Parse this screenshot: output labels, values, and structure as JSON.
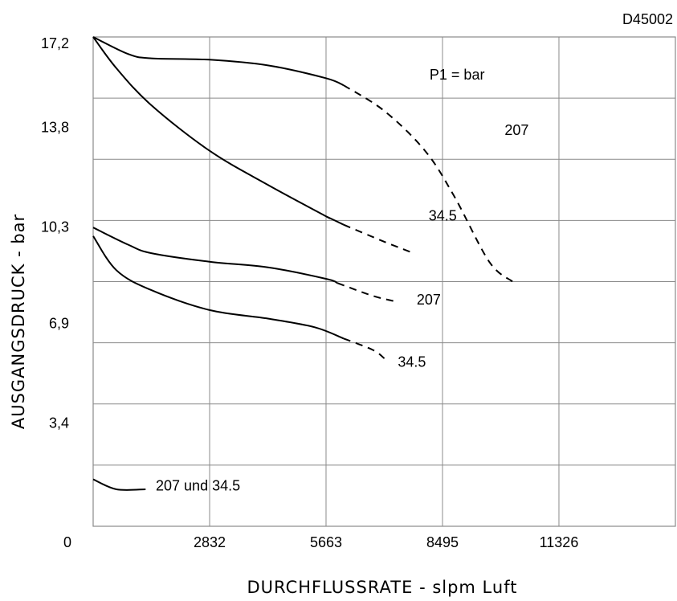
{
  "chart_data": {
    "type": "line",
    "code": "D45002",
    "xlabel": "DURCHFLUSSRATE - slpm Luft",
    "ylabel": "AUSGANGSDRUCK - bar",
    "xlim": [
      0,
      14158
    ],
    "ylim": [
      0,
      17.2
    ],
    "x_ticks": [
      {
        "value": 0,
        "label": "0"
      },
      {
        "value": 2832,
        "label": "2832"
      },
      {
        "value": 5663,
        "label": "5663"
      },
      {
        "value": 8495,
        "label": "8495"
      },
      {
        "value": 11326,
        "label": "11326"
      }
    ],
    "y_ticks": [
      {
        "value": 3.4,
        "label": "3,4"
      },
      {
        "value": 6.9,
        "label": "6,9"
      },
      {
        "value": 10.3,
        "label": "10,3"
      },
      {
        "value": 13.8,
        "label": "13,8"
      },
      {
        "value": 17.2,
        "label": "17,2"
      }
    ],
    "x_grid": [
      0,
      2832,
      5663,
      8495,
      11326
    ],
    "y_grid": [
      2.15,
      4.3,
      6.45,
      8.6,
      10.75,
      12.9,
      15.05
    ],
    "legend_title": "P1 = bar",
    "series": [
      {
        "label": "207",
        "solid": [
          [
            0,
            17.2
          ],
          [
            850,
            16.6
          ],
          [
            1415,
            16.45
          ],
          [
            2830,
            16.4
          ],
          [
            4250,
            16.2
          ],
          [
            5660,
            15.75
          ],
          [
            6090,
            15.5
          ]
        ],
        "dashed": [
          [
            6090,
            15.5
          ],
          [
            7080,
            14.6
          ],
          [
            8070,
            13.2
          ],
          [
            8780,
            11.6
          ],
          [
            9630,
            9.3
          ],
          [
            10200,
            8.6
          ]
        ]
      },
      {
        "label": "34.5",
        "solid": [
          [
            0,
            17.2
          ],
          [
            565,
            16.1
          ],
          [
            1415,
            14.8
          ],
          [
            2830,
            13.2
          ],
          [
            4250,
            12.0
          ],
          [
            5660,
            10.9
          ],
          [
            5660,
            10.9
          ],
          [
            6090,
            10.6
          ]
        ],
        "dashed": [
          [
            6090,
            10.6
          ],
          [
            7080,
            10.0
          ],
          [
            7790,
            9.6
          ]
        ]
      },
      {
        "label": "207",
        "solid": [
          [
            0,
            10.5
          ],
          [
            850,
            9.9
          ],
          [
            1415,
            9.6
          ],
          [
            2830,
            9.3
          ],
          [
            4250,
            9.1
          ],
          [
            5660,
            8.7
          ],
          [
            5940,
            8.55
          ]
        ],
        "dashed": [
          [
            5940,
            8.55
          ],
          [
            6800,
            8.1
          ],
          [
            7360,
            7.9
          ]
        ]
      },
      {
        "label": "34.5",
        "solid": [
          [
            0,
            10.2
          ],
          [
            565,
            9.0
          ],
          [
            1415,
            8.3
          ],
          [
            2830,
            7.6
          ],
          [
            4250,
            7.3
          ],
          [
            5380,
            7.0
          ],
          [
            6090,
            6.6
          ]
        ],
        "dashed": [
          [
            6090,
            6.6
          ],
          [
            6800,
            6.2
          ],
          [
            7080,
            5.9
          ]
        ]
      },
      {
        "label": "207 und 34.5",
        "solid": [
          [
            0,
            1.65
          ],
          [
            565,
            1.3
          ],
          [
            1275,
            1.3
          ]
        ],
        "dashed": []
      }
    ],
    "annotations": [
      {
        "text": "P1 = bar",
        "x": 8850,
        "y": 15.7
      },
      {
        "text": "207",
        "x": 10300,
        "y": 13.75
      },
      {
        "text": "34.5",
        "x": 8500,
        "y": 10.75
      },
      {
        "text": "207",
        "x": 8160,
        "y": 7.8
      },
      {
        "text": "34.5",
        "x": 7750,
        "y": 5.6
      },
      {
        "text": "207 und 34.5",
        "x": 2550,
        "y": 1.25
      }
    ]
  }
}
